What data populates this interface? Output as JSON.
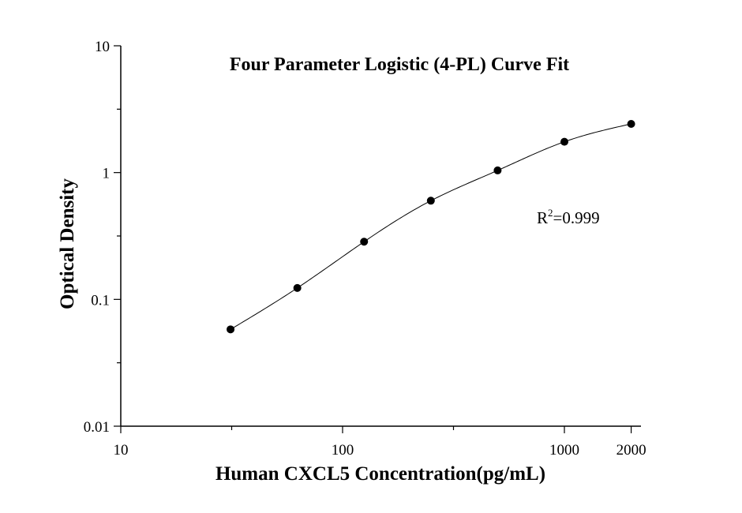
{
  "chart_data": {
    "type": "scatter",
    "title": "Four Parameter Logistic (4-PL) Curve Fit",
    "xlabel": "Human CXCL5 Concentration(pg/mL)",
    "ylabel": "Optical Density",
    "x_scale": "log",
    "y_scale": "log",
    "xlim": [
      10,
      2200
    ],
    "ylim": [
      0.01,
      10
    ],
    "x_ticks": [
      10,
      100,
      1000,
      2000
    ],
    "x_tick_labels": [
      "10",
      "100",
      "1000",
      "2000"
    ],
    "y_ticks": [
      0.01,
      0.1,
      1,
      10
    ],
    "y_tick_labels": [
      "0.01",
      "0.1",
      "1",
      "10"
    ],
    "grid": false,
    "series": [
      {
        "x": [
          31.25,
          62.5,
          125,
          250,
          500,
          1000,
          2000
        ],
        "y": [
          0.058,
          0.123,
          0.285,
          0.6,
          1.04,
          1.75,
          2.42
        ]
      }
    ],
    "fit_curve": {
      "model": "4-PL",
      "x_range": [
        31.25,
        2000
      ]
    },
    "annotations": [
      {
        "base": "R",
        "sup": "2",
        "rest": "=0.999"
      }
    ]
  }
}
